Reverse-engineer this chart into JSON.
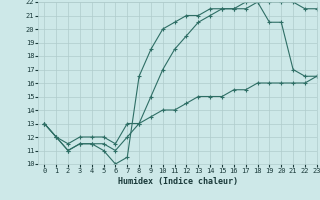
{
  "xlabel": "Humidex (Indice chaleur)",
  "xlim": [
    -0.5,
    23
  ],
  "ylim": [
    10,
    22
  ],
  "xticks": [
    0,
    1,
    2,
    3,
    4,
    5,
    6,
    7,
    8,
    9,
    10,
    11,
    12,
    13,
    14,
    15,
    16,
    17,
    18,
    19,
    20,
    21,
    22,
    23
  ],
  "yticks": [
    10,
    11,
    12,
    13,
    14,
    15,
    16,
    17,
    18,
    19,
    20,
    21,
    22
  ],
  "bg_color": "#cde8e8",
  "grid_color": "#b0cccc",
  "line_color": "#2e6e65",
  "lines": [
    {
      "x": [
        0,
        1,
        2,
        3,
        4,
        5,
        6,
        7,
        8,
        9,
        10,
        11,
        12,
        13,
        14,
        15,
        16,
        17,
        18,
        19,
        20,
        21,
        22,
        23
      ],
      "y": [
        13,
        12,
        11,
        11.5,
        11.5,
        11,
        10,
        10.5,
        16.5,
        18.5,
        20,
        20.5,
        21,
        21,
        21.5,
        21.5,
        21.5,
        22,
        22,
        20.5,
        20.5,
        17,
        16.5,
        16.5
      ]
    },
    {
      "x": [
        0,
        1,
        2,
        3,
        4,
        5,
        6,
        7,
        8,
        9,
        10,
        11,
        12,
        13,
        14,
        15,
        16,
        17,
        18,
        19,
        20,
        21,
        22,
        23
      ],
      "y": [
        13,
        12,
        11,
        11.5,
        11.5,
        11.5,
        11,
        12,
        13,
        15,
        17,
        18.5,
        19.5,
        20.5,
        21,
        21.5,
        21.5,
        21.5,
        22,
        22,
        22,
        22,
        21.5,
        21.5
      ]
    },
    {
      "x": [
        0,
        1,
        2,
        3,
        4,
        5,
        6,
        7,
        8,
        9,
        10,
        11,
        12,
        13,
        14,
        15,
        16,
        17,
        18,
        19,
        20,
        21,
        22,
        23
      ],
      "y": [
        13,
        12,
        11.5,
        12,
        12,
        12,
        11.5,
        13,
        13,
        13.5,
        14,
        14,
        14.5,
        15,
        15,
        15,
        15.5,
        15.5,
        16,
        16,
        16,
        16,
        16,
        16.5
      ]
    }
  ]
}
